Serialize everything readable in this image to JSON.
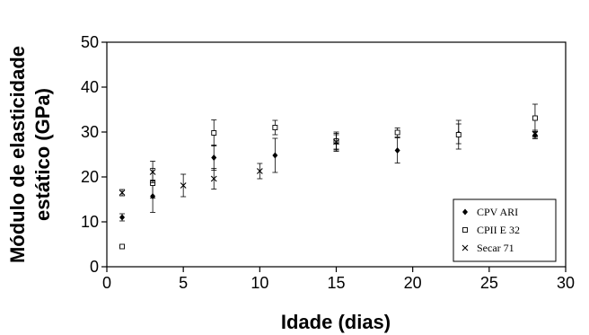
{
  "chart_data": {
    "type": "scatter",
    "xlabel": "Idade (dias)",
    "ylabel_lines": [
      "Módulo de elasticidade",
      "estático (GPa)"
    ],
    "xlim": [
      0,
      30
    ],
    "ylim": [
      0,
      50
    ],
    "xticks": [
      0,
      5,
      10,
      15,
      20,
      25,
      30
    ],
    "yticks": [
      0,
      10,
      20,
      30,
      40,
      50
    ],
    "grid": false,
    "legend_position": "bottom-right",
    "error_bars": true,
    "series": [
      {
        "name": "CPV ARI",
        "marker": "diamond-filled",
        "points": [
          {
            "x": 1,
            "y": 11.0,
            "err": 0.8
          },
          {
            "x": 3,
            "y": 15.7,
            "err": 3.6
          },
          {
            "x": 7,
            "y": 24.3,
            "err": 2.8
          },
          {
            "x": 11,
            "y": 24.8,
            "err": 3.8
          },
          {
            "x": 15,
            "y": 27.7,
            "err": 2.0
          },
          {
            "x": 19,
            "y": 25.9,
            "err": 2.8
          },
          {
            "x": 23,
            "y": 29.6,
            "err": 2.2
          },
          {
            "x": 28,
            "y": 29.3,
            "err": 0.8
          }
        ]
      },
      {
        "name": "CPII E 32",
        "marker": "square-open",
        "points": [
          {
            "x": 1,
            "y": 4.5,
            "err": 0.2
          },
          {
            "x": 3,
            "y": 18.6,
            "err": 3.3
          },
          {
            "x": 7,
            "y": 29.8,
            "err": 2.9
          },
          {
            "x": 11,
            "y": 31.0,
            "err": 1.6
          },
          {
            "x": 15,
            "y": 28.0,
            "err": 2.0
          },
          {
            "x": 19,
            "y": 29.9,
            "err": 1.0
          },
          {
            "x": 23,
            "y": 29.4,
            "err": 3.2
          },
          {
            "x": 28,
            "y": 33.1,
            "err": 3.1
          }
        ]
      },
      {
        "name": "Secar 71",
        "marker": "x",
        "points": [
          {
            "x": 1,
            "y": 16.5,
            "err": 0.7
          },
          {
            "x": 3,
            "y": 21.1,
            "err": 2.4
          },
          {
            "x": 5,
            "y": 18.1,
            "err": 2.5
          },
          {
            "x": 7,
            "y": 19.6,
            "err": 2.3
          },
          {
            "x": 10,
            "y": 21.3,
            "err": 1.7
          },
          {
            "x": 15,
            "y": 27.8,
            "err": 1.6
          },
          {
            "x": 28,
            "y": 29.6,
            "err": 0.8
          }
        ]
      }
    ]
  }
}
